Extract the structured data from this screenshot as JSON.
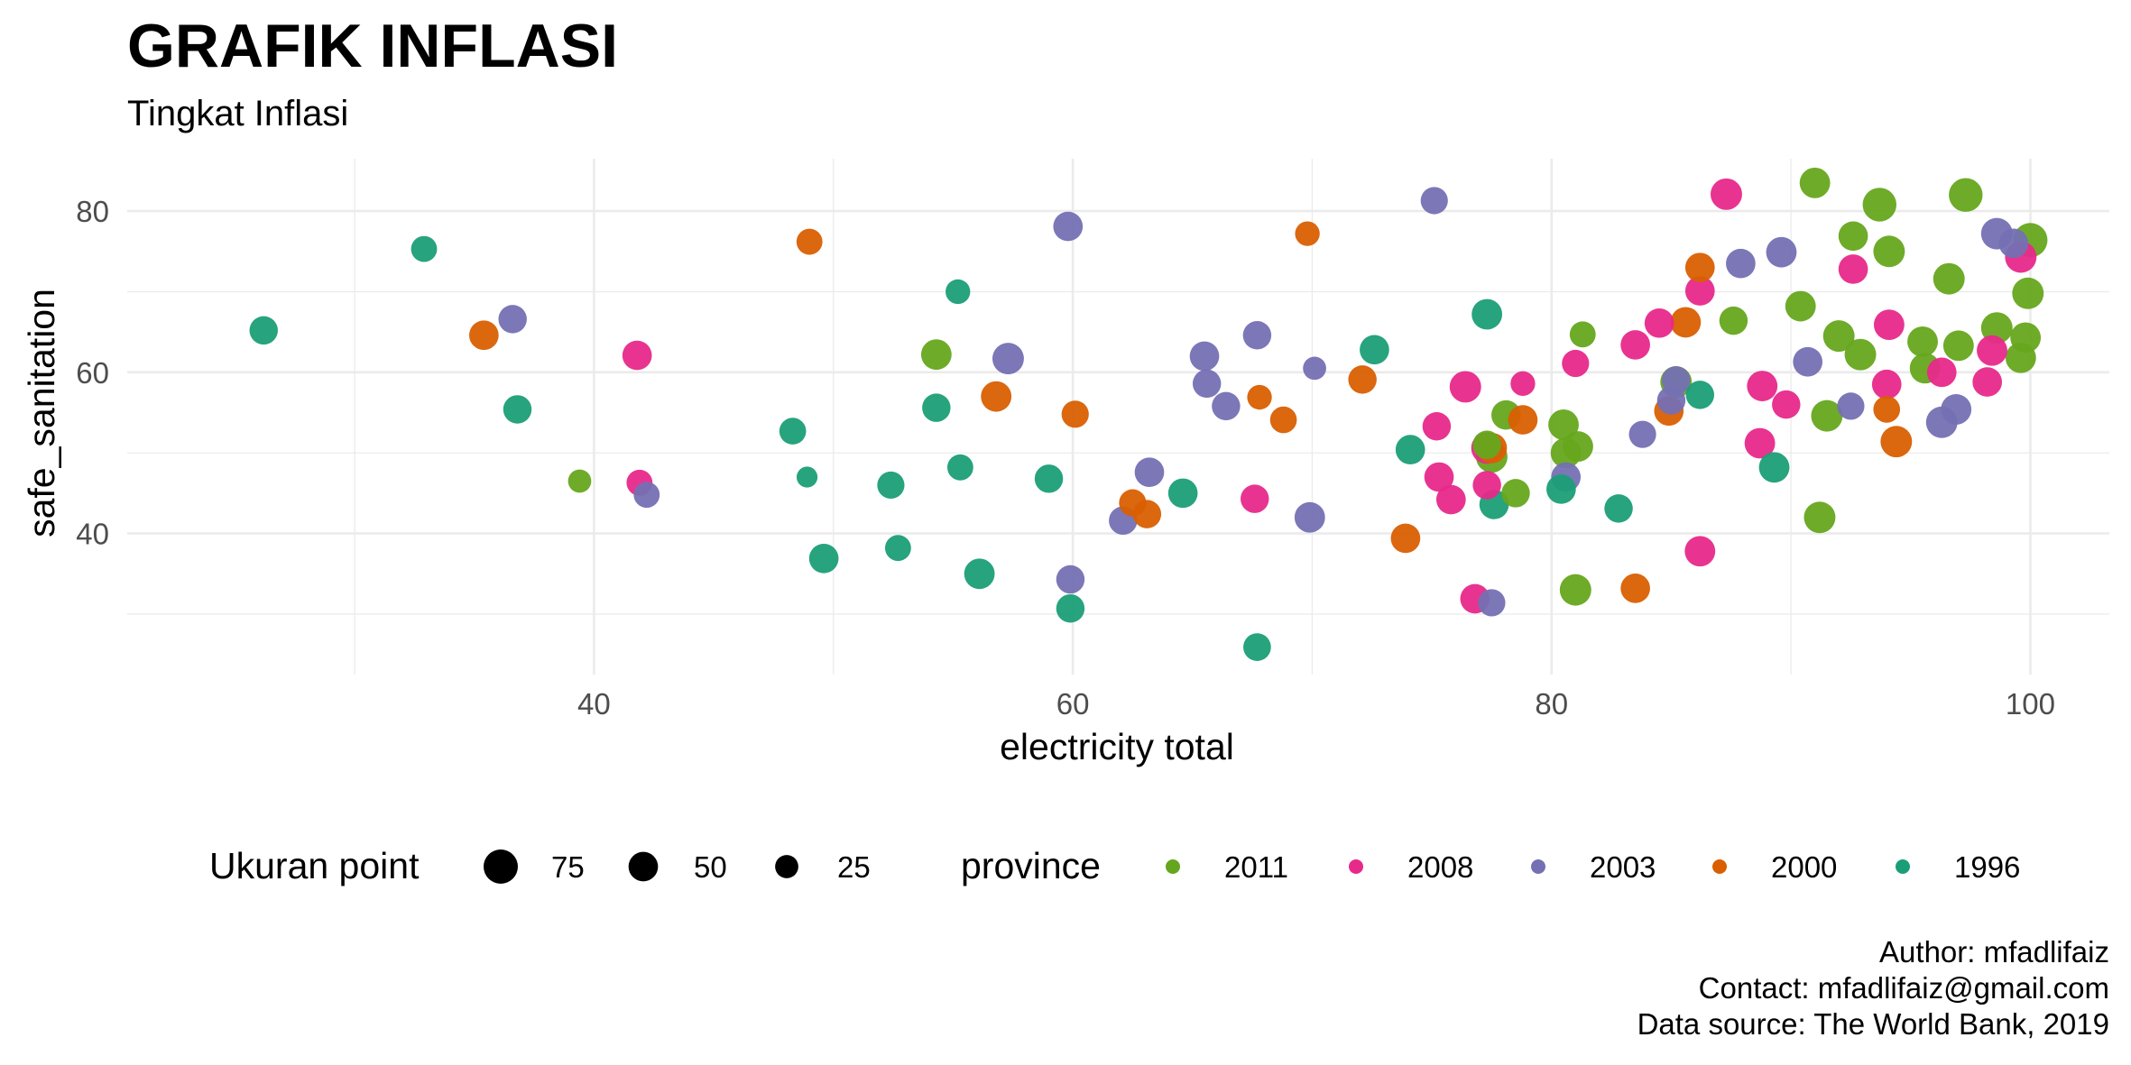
{
  "title": "GRAFIK INFLASI",
  "subtitle": "Tingkat Inflasi",
  "caption": {
    "author": "Author: mfadlifaiz",
    "contact": "Contact: mfadlifaiz@gmail.com",
    "source": "Data source: The World Bank, 2019"
  },
  "colors": {
    "2011": "#66a61e",
    "2008": "#e7298a",
    "2003": "#7570b3",
    "2000": "#d95f02",
    "1996": "#1b9e77",
    "grid": "#ebebeb"
  },
  "chart_data": {
    "type": "scatter",
    "title": "GRAFIK INFLASI",
    "subtitle": "Tingkat Inflasi",
    "xlabel": "electricity total",
    "ylabel": "safe_sanitation",
    "xlim": [
      20.5,
      103.3
    ],
    "ylim": [
      22.5,
      86.5
    ],
    "xticks": [
      40,
      60,
      80,
      100
    ],
    "yticks": [
      40,
      60,
      80
    ],
    "grid": true,
    "legend_position": "bottom",
    "size_legend": {
      "title": "Ukuran point",
      "entries": [
        {
          "label": "75",
          "value": 75
        },
        {
          "label": "50",
          "value": 50
        },
        {
          "label": "25",
          "value": 25
        }
      ]
    },
    "color_legend": {
      "title": "province",
      "entries": [
        "2011",
        "2008",
        "2003",
        "2000",
        "1996"
      ]
    },
    "series": [
      {
        "name": "2011",
        "points": [
          [
            39.4,
            46.5,
            25
          ],
          [
            54.3,
            62.2,
            55
          ],
          [
            77.5,
            49.5,
            60
          ],
          [
            77.3,
            51.0,
            45
          ],
          [
            78.1,
            54.7,
            50
          ],
          [
            78.5,
            45.0,
            45
          ],
          [
            80.5,
            53.5,
            55
          ],
          [
            80.6,
            50.0,
            55
          ],
          [
            81.1,
            50.8,
            55
          ],
          [
            81.0,
            33.0,
            60
          ],
          [
            81.3,
            64.7,
            35
          ],
          [
            85.2,
            58.8,
            60
          ],
          [
            87.6,
            66.4,
            45
          ],
          [
            90.4,
            68.2,
            55
          ],
          [
            91.0,
            83.5,
            55
          ],
          [
            91.2,
            42.0,
            60
          ],
          [
            91.5,
            54.6,
            60
          ],
          [
            92.0,
            64.5,
            60
          ],
          [
            92.6,
            76.9,
            50
          ],
          [
            92.9,
            62.2,
            60
          ],
          [
            93.7,
            80.8,
            72
          ],
          [
            94.1,
            75.0,
            60
          ],
          [
            95.5,
            63.8,
            55
          ],
          [
            95.6,
            60.5,
            55
          ],
          [
            96.6,
            71.6,
            60
          ],
          [
            97.0,
            63.3,
            55
          ],
          [
            97.3,
            82.0,
            72
          ],
          [
            98.6,
            65.5,
            60
          ],
          [
            99.6,
            61.8,
            55
          ],
          [
            99.8,
            64.3,
            55
          ],
          [
            99.9,
            69.8,
            60
          ],
          [
            100.0,
            76.4,
            75
          ]
        ]
      },
      {
        "name": "2008",
        "points": [
          [
            41.8,
            62.1,
            50
          ],
          [
            41.9,
            46.3,
            35
          ],
          [
            67.6,
            44.3,
            45
          ],
          [
            75.2,
            53.3,
            45
          ],
          [
            75.3,
            47.0,
            50
          ],
          [
            75.8,
            44.2,
            50
          ],
          [
            76.4,
            58.2,
            60
          ],
          [
            76.8,
            31.9,
            50
          ],
          [
            77.3,
            50.6,
            60
          ],
          [
            77.3,
            46.0,
            45
          ],
          [
            78.8,
            58.6,
            30
          ],
          [
            81.0,
            61.1,
            40
          ],
          [
            83.5,
            63.4,
            50
          ],
          [
            84.5,
            66.1,
            50
          ],
          [
            86.2,
            37.8,
            55
          ],
          [
            86.2,
            70.1,
            50
          ],
          [
            87.3,
            82.1,
            60
          ],
          [
            88.7,
            51.2,
            55
          ],
          [
            88.8,
            58.3,
            55
          ],
          [
            89.8,
            56.0,
            45
          ],
          [
            92.6,
            72.8,
            50
          ],
          [
            94.0,
            58.5,
            50
          ],
          [
            94.1,
            65.9,
            55
          ],
          [
            96.3,
            60.0,
            50
          ],
          [
            98.2,
            58.8,
            50
          ],
          [
            98.4,
            62.7,
            55
          ],
          [
            99.6,
            74.3,
            60
          ]
        ]
      },
      {
        "name": "2003",
        "points": [
          [
            36.6,
            66.6,
            45
          ],
          [
            42.2,
            44.8,
            35
          ],
          [
            57.3,
            61.7,
            60
          ],
          [
            59.8,
            78.1,
            50
          ],
          [
            59.9,
            34.3,
            45
          ],
          [
            62.1,
            41.6,
            45
          ],
          [
            63.2,
            47.6,
            50
          ],
          [
            65.5,
            62.0,
            50
          ],
          [
            65.6,
            58.6,
            45
          ],
          [
            66.4,
            55.8,
            45
          ],
          [
            67.7,
            64.6,
            45
          ],
          [
            69.9,
            42.0,
            55
          ],
          [
            70.1,
            60.5,
            25
          ],
          [
            75.1,
            81.3,
            40
          ],
          [
            77.5,
            31.4,
            40
          ],
          [
            80.6,
            47.0,
            50
          ],
          [
            83.8,
            52.3,
            40
          ],
          [
            85.0,
            56.5,
            45
          ],
          [
            85.2,
            59.0,
            45
          ],
          [
            87.9,
            73.5,
            50
          ],
          [
            89.6,
            74.9,
            55
          ],
          [
            90.7,
            61.3,
            50
          ],
          [
            92.5,
            55.8,
            40
          ],
          [
            96.3,
            53.8,
            60
          ],
          [
            96.9,
            55.4,
            55
          ],
          [
            98.6,
            77.2,
            60
          ],
          [
            99.3,
            76.0,
            50
          ]
        ]
      },
      {
        "name": "2000",
        "points": [
          [
            35.4,
            64.6,
            50
          ],
          [
            49.0,
            76.2,
            35
          ],
          [
            56.8,
            57.0,
            55
          ],
          [
            60.1,
            54.8,
            40
          ],
          [
            62.5,
            43.8,
            40
          ],
          [
            63.1,
            42.4,
            45
          ],
          [
            67.8,
            56.9,
            30
          ],
          [
            68.8,
            54.1,
            38
          ],
          [
            69.8,
            77.2,
            30
          ],
          [
            72.1,
            59.1,
            45
          ],
          [
            73.9,
            39.4,
            50
          ],
          [
            77.5,
            50.6,
            55
          ],
          [
            78.8,
            54.1,
            50
          ],
          [
            83.5,
            33.2,
            50
          ],
          [
            84.9,
            55.2,
            50
          ],
          [
            85.6,
            66.2,
            55
          ],
          [
            86.2,
            73.0,
            50
          ],
          [
            94.0,
            55.4,
            38
          ],
          [
            94.4,
            51.4,
            60
          ]
        ]
      },
      {
        "name": "1996",
        "points": [
          [
            26.2,
            65.2,
            45
          ],
          [
            32.9,
            75.3,
            35
          ],
          [
            36.8,
            55.4,
            45
          ],
          [
            48.3,
            52.7,
            38
          ],
          [
            48.9,
            47.0,
            18
          ],
          [
            49.6,
            36.9,
            50
          ],
          [
            52.4,
            46.0,
            40
          ],
          [
            52.7,
            38.2,
            35
          ],
          [
            54.3,
            55.6,
            45
          ],
          [
            55.2,
            70.0,
            30
          ],
          [
            55.3,
            48.2,
            35
          ],
          [
            56.1,
            35.0,
            55
          ],
          [
            59.0,
            46.8,
            45
          ],
          [
            59.9,
            30.7,
            45
          ],
          [
            64.6,
            45.0,
            50
          ],
          [
            67.7,
            25.9,
            42
          ],
          [
            72.6,
            62.8,
            50
          ],
          [
            74.1,
            50.4,
            50
          ],
          [
            77.3,
            67.2,
            55
          ],
          [
            77.6,
            43.6,
            50
          ],
          [
            80.4,
            45.5,
            50
          ],
          [
            82.8,
            43.1,
            45
          ],
          [
            86.2,
            57.2,
            45
          ],
          [
            89.3,
            48.2,
            55
          ]
        ]
      }
    ]
  }
}
